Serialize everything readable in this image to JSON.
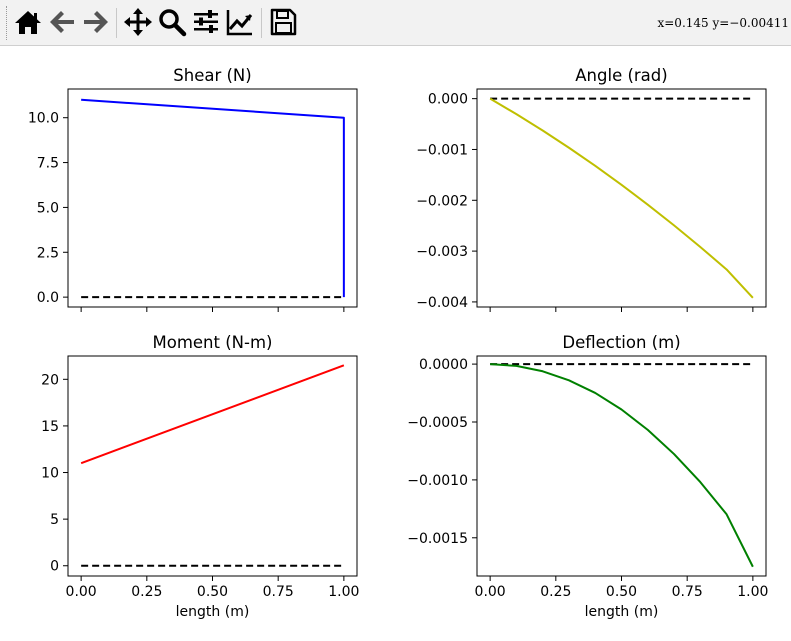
{
  "toolbar": {
    "buttons": [
      {
        "name": "home-icon",
        "label": "Home"
      },
      {
        "name": "back-arrow-icon",
        "label": "Back"
      },
      {
        "name": "forward-arrow-icon",
        "label": "Forward"
      },
      {
        "name": "pan-icon",
        "label": "Pan"
      },
      {
        "name": "zoom-icon",
        "label": "Zoom"
      },
      {
        "name": "subplots-icon",
        "label": "Subplots"
      },
      {
        "name": "customize-icon",
        "label": "Customize"
      },
      {
        "name": "save-icon",
        "label": "Save"
      }
    ],
    "coords": "x=0.145 y=−0.00411"
  },
  "colors": {
    "shear": "#0000ff",
    "angle": "#bfbf00",
    "moment": "#ff0000",
    "deflection": "#008000",
    "baseline": "#000000"
  },
  "chart_data": [
    {
      "id": "shear",
      "type": "line",
      "title": "Shear (N)",
      "xlabel": "",
      "ylabel": "",
      "xlim": [
        -0.05,
        1.05
      ],
      "ylim": [
        -0.55,
        11.6
      ],
      "xticks": [
        0,
        0.25,
        0.5,
        0.75,
        1.0
      ],
      "xticklabels": [
        "",
        "",
        "",
        "",
        ""
      ],
      "yticks": [
        0,
        2.5,
        5,
        7.5,
        10
      ],
      "yticklabels": [
        "0.0",
        "2.5",
        "5.0",
        "7.5",
        "10.0"
      ],
      "series": [
        {
          "name": "shear",
          "color": "#0000ff",
          "dashed": false,
          "x": [
            0,
            1,
            1
          ],
          "y": [
            11,
            10,
            0
          ]
        },
        {
          "name": "zero-line",
          "color": "#000000",
          "dashed": true,
          "x": [
            0,
            1
          ],
          "y": [
            0,
            0
          ]
        }
      ]
    },
    {
      "id": "angle",
      "type": "line",
      "title": "Angle (rad)",
      "xlabel": "",
      "ylabel": "",
      "xlim": [
        -0.05,
        1.05
      ],
      "ylim": [
        -0.0041,
        0.00019
      ],
      "xticks": [
        0,
        0.25,
        0.5,
        0.75,
        1.0
      ],
      "xticklabels": [
        "",
        "",
        "",
        "",
        ""
      ],
      "yticks": [
        0,
        -0.001,
        -0.002,
        -0.003,
        -0.004
      ],
      "yticklabels": [
        "0.000",
        "−0.001",
        "−0.002",
        "−0.003",
        "−0.004"
      ],
      "series": [
        {
          "name": "angle",
          "color": "#bfbf00",
          "dashed": false,
          "x": [
            0,
            0.1,
            0.2,
            0.3,
            0.4,
            0.5,
            0.6,
            0.7,
            0.8,
            0.9,
            1.0
          ],
          "y": [
            0,
            -0.000305,
            -0.000627,
            -0.000966,
            -0.001322,
            -0.001695,
            -0.002086,
            -0.002494,
            -0.002919,
            -0.003361,
            -0.00392
          ]
        },
        {
          "name": "zero-line",
          "color": "#000000",
          "dashed": true,
          "x": [
            0,
            1
          ],
          "y": [
            0,
            0
          ]
        }
      ]
    },
    {
      "id": "moment",
      "type": "line",
      "title": "Moment (N-m)",
      "xlabel": "length (m)",
      "ylabel": "",
      "xlim": [
        -0.05,
        1.05
      ],
      "ylim": [
        -1.1,
        22.5
      ],
      "xticks": [
        0,
        0.25,
        0.5,
        0.75,
        1.0
      ],
      "xticklabels": [
        "0.00",
        "0.25",
        "0.50",
        "0.75",
        "1.00"
      ],
      "yticks": [
        0,
        5,
        10,
        15,
        20
      ],
      "yticklabels": [
        "0",
        "5",
        "10",
        "15",
        "20"
      ],
      "series": [
        {
          "name": "moment",
          "color": "#ff0000",
          "dashed": false,
          "x": [
            0,
            1
          ],
          "y": [
            11,
            21.5
          ]
        },
        {
          "name": "zero-line",
          "color": "#000000",
          "dashed": true,
          "x": [
            0,
            1
          ],
          "y": [
            0,
            0
          ]
        }
      ]
    },
    {
      "id": "deflection",
      "type": "line",
      "title": "Deflection (m)",
      "xlabel": "length (m)",
      "ylabel": "",
      "xlim": [
        -0.05,
        1.05
      ],
      "ylim": [
        -0.00183,
        7e-05
      ],
      "xticks": [
        0,
        0.25,
        0.5,
        0.75,
        1.0
      ],
      "xticklabels": [
        "0.00",
        "0.25",
        "0.50",
        "0.75",
        "1.00"
      ],
      "yticks": [
        0,
        -0.0005,
        -0.001,
        -0.0015
      ],
      "yticklabels": [
        "0.0000",
        "−0.0005",
        "−0.0010",
        "−0.0015"
      ],
      "series": [
        {
          "name": "deflection",
          "color": "#008000",
          "dashed": false,
          "x": [
            0,
            0.1,
            0.2,
            0.3,
            0.4,
            0.5,
            0.6,
            0.7,
            0.8,
            0.9,
            1.0
          ],
          "y": [
            0,
            -1.54e-05,
            -6.19e-05,
            -0.00014,
            -0.000249,
            -0.000392,
            -0.000568,
            -0.000777,
            -0.001019,
            -0.001297,
            -0.00175
          ]
        },
        {
          "name": "zero-line",
          "color": "#000000",
          "dashed": true,
          "x": [
            0,
            1
          ],
          "y": [
            0,
            0
          ]
        }
      ]
    }
  ]
}
